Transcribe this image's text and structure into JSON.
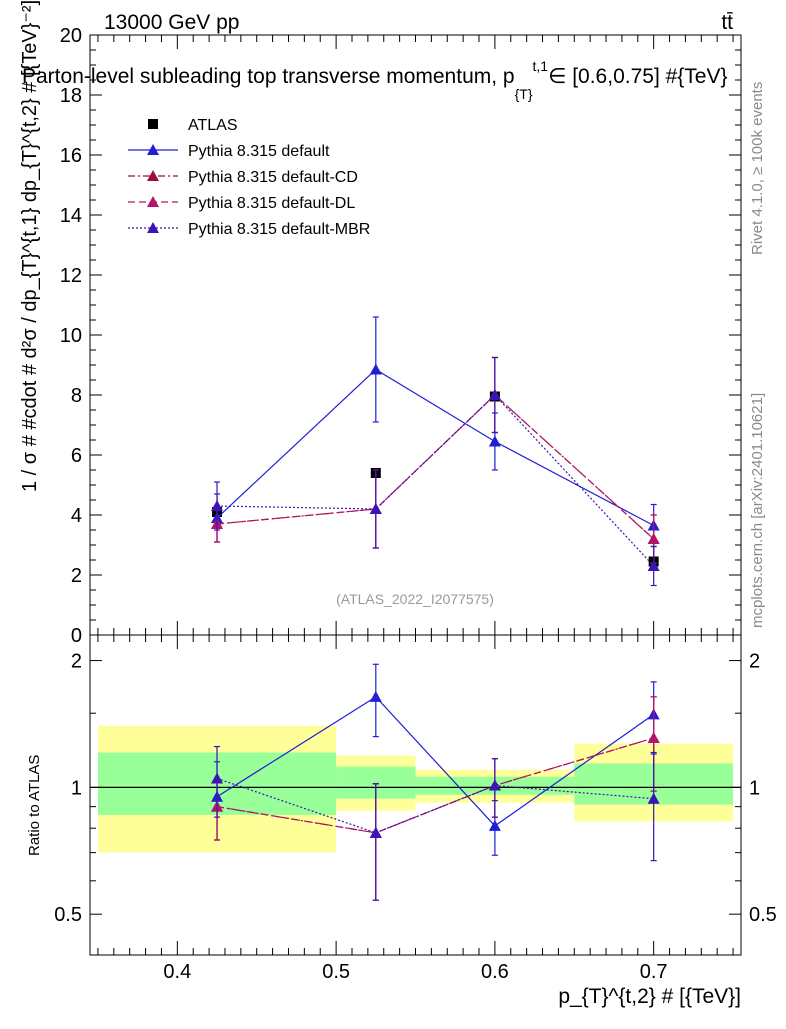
{
  "header": {
    "energy_label": "13000 GeV pp",
    "process_label": "tt̄",
    "plot_title": "Parton-level subleading top transverse momentum, p",
    "plot_title_sub": "{T}",
    "plot_title_sup": "t,1",
    "plot_title_range": "∈ [0.6,0.75] #{TeV}"
  },
  "side_labels": {
    "rivet": "Rivet 4.1.0, ≥ 100k events",
    "mcplots": "mcplots.cern.ch [arXiv:2401.10621]"
  },
  "watermark": "(ATLAS_2022_I2077575)",
  "colors": {
    "atlas": "#000000",
    "default": "#1f1fd6",
    "cd": "#9b0f3c",
    "dl": "#b3146b",
    "mbr": "#3b14b3",
    "band_yellow": "#ffff99",
    "band_green": "#99ff99"
  },
  "chart_data": [
    {
      "type": "scatter",
      "panel": "main",
      "ylabel": "1 / σ # #cdot # d²σ / dp_{T}^{t,1} dp_{T}^{t,2} # [{TeV}⁻²]",
      "xlim": [
        0.345,
        0.755
      ],
      "ylim": [
        0,
        20
      ],
      "yticks": [
        0,
        2,
        4,
        6,
        8,
        10,
        12,
        14,
        16,
        18,
        20
      ],
      "grid": false,
      "legend_position": "top-left",
      "series": [
        {
          "name": "ATLAS",
          "key": "atlas",
          "marker": "square",
          "line": "none",
          "x": [
            0.425,
            0.525,
            0.6,
            0.7
          ],
          "y": [
            4.1,
            5.4,
            7.95,
            2.45
          ],
          "err": [
            0.0,
            0.0,
            0.0,
            0.0
          ]
        },
        {
          "name": "Pythia 8.315 default",
          "key": "default",
          "marker": "triangle",
          "line": "solid",
          "x": [
            0.425,
            0.525,
            0.6,
            0.7
          ],
          "y": [
            3.9,
            8.85,
            6.45,
            3.65
          ],
          "err": [
            0.8,
            1.75,
            0.95,
            0.7
          ]
        },
        {
          "name": "Pythia 8.315 default-CD",
          "key": "cd",
          "marker": "triangle",
          "line": "dashdot",
          "x": [
            0.425,
            0.525,
            0.6,
            0.7
          ],
          "y": [
            3.7,
            4.2,
            8.0,
            3.2
          ],
          "err": [
            0.6,
            1.3,
            1.25,
            0.8
          ]
        },
        {
          "name": "Pythia 8.315 default-DL",
          "key": "dl",
          "marker": "triangle",
          "line": "dashed",
          "x": [
            0.425,
            0.525,
            0.6,
            0.7
          ],
          "y": [
            3.7,
            4.2,
            8.0,
            3.2
          ],
          "err": [
            0.6,
            1.3,
            1.25,
            0.8
          ]
        },
        {
          "name": "Pythia 8.315 default-MBR",
          "key": "mbr",
          "marker": "triangle",
          "line": "dotted",
          "x": [
            0.425,
            0.525,
            0.6,
            0.7
          ],
          "y": [
            4.3,
            4.2,
            8.0,
            2.3
          ],
          "err": [
            0.8,
            1.3,
            1.25,
            0.65
          ]
        }
      ]
    },
    {
      "type": "scatter",
      "panel": "ratio",
      "ylabel": "Ratio to ATLAS",
      "xlabel": "p_{T}^{t,2} # [{TeV}]",
      "xlim": [
        0.345,
        0.755
      ],
      "ylim": [
        0.4,
        2.3
      ],
      "ylog": true,
      "yticks": [
        0.5,
        1,
        2
      ],
      "xticks": [
        0.4,
        0.5,
        0.6,
        0.7
      ],
      "bands": [
        {
          "x0": 0.35,
          "x1": 0.5,
          "yellow": [
            0.7,
            1.4
          ],
          "green": [
            0.86,
            1.21
          ]
        },
        {
          "x0": 0.5,
          "x1": 0.55,
          "yellow": [
            0.88,
            1.19
          ],
          "green": [
            0.94,
            1.12
          ]
        },
        {
          "x0": 0.55,
          "x1": 0.65,
          "yellow": [
            0.92,
            1.1
          ],
          "green": [
            0.96,
            1.06
          ]
        },
        {
          "x0": 0.65,
          "x1": 0.75,
          "yellow": [
            0.83,
            1.27
          ],
          "green": [
            0.91,
            1.14
          ]
        }
      ],
      "series": [
        {
          "name": "Pythia 8.315 default",
          "key": "default",
          "line": "solid",
          "x": [
            0.425,
            0.525,
            0.6,
            0.7
          ],
          "y": [
            0.95,
            1.64,
            0.81,
            1.49
          ],
          "err": [
            0.2,
            0.32,
            0.12,
            0.29
          ]
        },
        {
          "name": "Pythia 8.315 default-CD",
          "key": "cd",
          "line": "dashdot",
          "x": [
            0.425,
            0.525,
            0.6,
            0.7
          ],
          "y": [
            0.9,
            0.78,
            1.01,
            1.31
          ],
          "err": [
            0.15,
            0.24,
            0.16,
            0.33
          ]
        },
        {
          "name": "Pythia 8.315 default-DL",
          "key": "dl",
          "line": "dashed",
          "x": [
            0.425,
            0.525,
            0.6,
            0.7
          ],
          "y": [
            0.9,
            0.78,
            1.01,
            1.31
          ],
          "err": [
            0.15,
            0.24,
            0.16,
            0.33
          ]
        },
        {
          "name": "Pythia 8.315 default-MBR",
          "key": "mbr",
          "line": "dotted",
          "x": [
            0.425,
            0.525,
            0.6,
            0.7
          ],
          "y": [
            1.05,
            0.78,
            1.01,
            0.94
          ],
          "err": [
            0.2,
            0.24,
            0.16,
            0.27
          ]
        }
      ]
    }
  ]
}
